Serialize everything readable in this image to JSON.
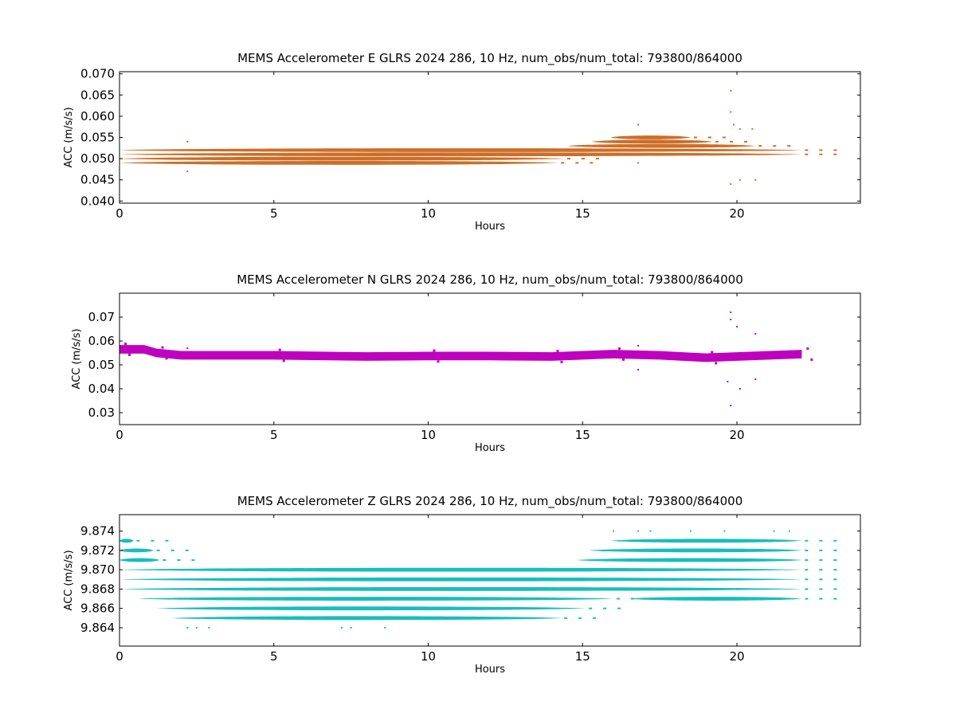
{
  "chart_data": [
    {
      "type": "scatter",
      "title": "MEMS Accelerometer E GLRS 2024 286, 10 Hz, num_obs/num_total: 793800/864000",
      "xlabel": "Hours",
      "ylabel": "ACC (m/s/s)",
      "xlim": [
        0,
        24
      ],
      "ylim": [
        0.0395,
        0.0705
      ],
      "xticks": [
        0,
        5,
        10,
        15,
        20
      ],
      "xtick_labels": [
        "0",
        "5",
        "10",
        "15",
        "20"
      ],
      "yticks": [
        0.04,
        0.045,
        0.05,
        0.055,
        0.06,
        0.065,
        0.07
      ],
      "ytick_labels": [
        "0.040",
        "0.045",
        "0.050",
        "0.055",
        "0.060",
        "0.065",
        "0.070"
      ],
      "color": "#cd6e28",
      "bands": [
        {
          "y": 0.049,
          "x": [
            [
              0,
              14.2
            ]
          ]
        },
        {
          "y": 0.05,
          "x": [
            [
              0,
              14.4
            ]
          ]
        },
        {
          "y": 0.051,
          "x": [
            [
              0,
              22.1
            ]
          ]
        },
        {
          "y": 0.052,
          "x": [
            [
              0,
              22.1
            ]
          ]
        },
        {
          "y": 0.053,
          "x": [
            [
              14.5,
              20.6
            ]
          ]
        },
        {
          "y": 0.054,
          "x": [
            [
              15.3,
              19.2
            ]
          ]
        },
        {
          "y": 0.055,
          "x": [
            [
              15.9,
              18.5
            ]
          ]
        }
      ],
      "outliers": [
        {
          "x": 2.2,
          "y": 0.054
        },
        {
          "x": 2.2,
          "y": 0.047
        },
        {
          "x": 16.8,
          "y": 0.058
        },
        {
          "x": 16.8,
          "y": 0.049
        },
        {
          "x": 19.8,
          "y": 0.066
        },
        {
          "x": 19.8,
          "y": 0.061
        },
        {
          "x": 19.9,
          "y": 0.058
        },
        {
          "x": 19.8,
          "y": 0.044
        },
        {
          "x": 20.1,
          "y": 0.057
        },
        {
          "x": 20.1,
          "y": 0.045
        },
        {
          "x": 20.6,
          "y": 0.045
        },
        {
          "x": 20.5,
          "y": 0.057
        }
      ]
    },
    {
      "type": "scatter",
      "title": "MEMS Accelerometer N GLRS 2024 286, 10 Hz, num_obs/num_total: 793800/864000",
      "xlabel": "Hours",
      "ylabel": "ACC (m/s/s)",
      "xlim": [
        0,
        24
      ],
      "ylim": [
        0.025,
        0.08
      ],
      "xticks": [
        0,
        5,
        10,
        15,
        20
      ],
      "xtick_labels": [
        "0",
        "5",
        "10",
        "15",
        "20"
      ],
      "yticks": [
        0.03,
        0.04,
        0.05,
        0.06,
        0.07
      ],
      "ytick_labels": [
        "0.03",
        "0.04",
        "0.05",
        "0.06",
        "0.07"
      ],
      "color": "#bf00bf",
      "trend": [
        {
          "x": 0,
          "y": 0.0565
        },
        {
          "x": 0.8,
          "y": 0.0565
        },
        {
          "x": 1.2,
          "y": 0.055
        },
        {
          "x": 2,
          "y": 0.054
        },
        {
          "x": 5,
          "y": 0.054
        },
        {
          "x": 8,
          "y": 0.0535
        },
        {
          "x": 10,
          "y": 0.0537
        },
        {
          "x": 12,
          "y": 0.0537
        },
        {
          "x": 14,
          "y": 0.0535
        },
        {
          "x": 15,
          "y": 0.054
        },
        {
          "x": 16,
          "y": 0.0545
        },
        {
          "x": 17.5,
          "y": 0.054
        },
        {
          "x": 19,
          "y": 0.053
        },
        {
          "x": 20,
          "y": 0.0535
        },
        {
          "x": 22.1,
          "y": 0.0545
        }
      ],
      "band_halfwidth": 0.0018,
      "outliers": [
        {
          "x": 19.8,
          "y": 0.072
        },
        {
          "x": 19.8,
          "y": 0.069
        },
        {
          "x": 20.0,
          "y": 0.066
        },
        {
          "x": 19.8,
          "y": 0.033
        },
        {
          "x": 19.7,
          "y": 0.043
        },
        {
          "x": 20.1,
          "y": 0.04
        },
        {
          "x": 20.6,
          "y": 0.044
        },
        {
          "x": 16.8,
          "y": 0.048
        },
        {
          "x": 20.6,
          "y": 0.063
        },
        {
          "x": 2.2,
          "y": 0.057
        },
        {
          "x": 16.8,
          "y": 0.058
        }
      ]
    },
    {
      "type": "scatter",
      "title": "MEMS Accelerometer Z GLRS 2024 286, 10 Hz, num_obs/num_total: 793800/864000",
      "xlabel": "Hours",
      "ylabel": "ACC (m/s/s)",
      "xlim": [
        0,
        24
      ],
      "ylim": [
        9.8621,
        9.8757
      ],
      "xticks": [
        0,
        5,
        10,
        15,
        20
      ],
      "xtick_labels": [
        "0",
        "5",
        "10",
        "15",
        "20"
      ],
      "yticks": [
        9.864,
        9.866,
        9.868,
        9.87,
        9.872,
        9.874
      ],
      "ytick_labels": [
        "9.864",
        "9.866",
        "9.868",
        "9.870",
        "9.872",
        "9.874"
      ],
      "color": "#17bebe",
      "bands": [
        {
          "y": 9.873,
          "x": [
            [
              0,
              0.45
            ],
            [
              15.9,
              22.1
            ]
          ]
        },
        {
          "y": 9.872,
          "x": [
            [
              0,
              1.1
            ],
            [
              15.2,
              22.1
            ]
          ]
        },
        {
          "y": 9.871,
          "x": [
            [
              0,
              1.3
            ],
            [
              14.8,
              22.1
            ]
          ]
        },
        {
          "y": 9.87,
          "x": [
            [
              0,
              22.1
            ]
          ]
        },
        {
          "y": 9.869,
          "x": [
            [
              0,
              22.1
            ]
          ]
        },
        {
          "y": 9.868,
          "x": [
            [
              0,
              22.1
            ]
          ]
        },
        {
          "y": 9.867,
          "x": [
            [
              0.6,
              16.0
            ],
            [
              16.5,
              22.1
            ]
          ]
        },
        {
          "y": 9.866,
          "x": [
            [
              1.2,
              15.1
            ]
          ]
        },
        {
          "y": 9.865,
          "x": [
            [
              1.7,
              14.3
            ]
          ]
        }
      ],
      "outliers": [
        {
          "x": 2.2,
          "y": 9.864
        },
        {
          "x": 2.5,
          "y": 9.864
        },
        {
          "x": 2.9,
          "y": 9.864
        },
        {
          "x": 7.2,
          "y": 9.864
        },
        {
          "x": 7.5,
          "y": 9.864
        },
        {
          "x": 8.6,
          "y": 9.864
        },
        {
          "x": 16.0,
          "y": 9.874
        },
        {
          "x": 16.8,
          "y": 9.874
        },
        {
          "x": 17.2,
          "y": 9.874
        },
        {
          "x": 18.5,
          "y": 9.874
        },
        {
          "x": 19.6,
          "y": 9.874
        },
        {
          "x": 21.2,
          "y": 9.874
        },
        {
          "x": 21.7,
          "y": 9.874
        }
      ]
    }
  ]
}
